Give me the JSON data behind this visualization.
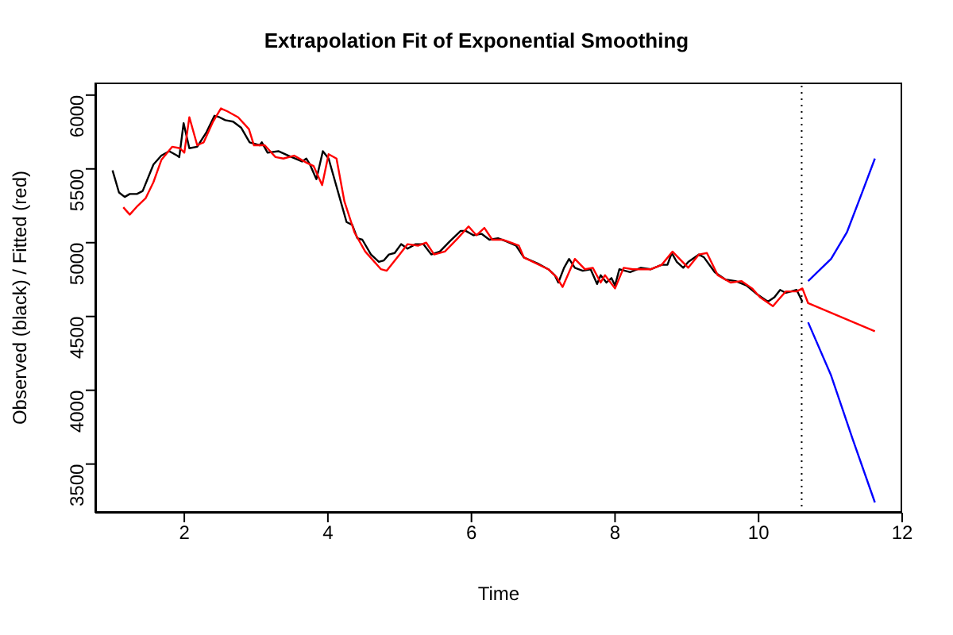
{
  "chart_data": {
    "type": "line",
    "title": "Extrapolation Fit of Exponential Smoothing",
    "xlabel": "Time",
    "ylabel": "Observed (black) / Fitted (red)",
    "xlim": [
      0.76,
      12.0
    ],
    "ylim": [
      3170,
      6085
    ],
    "xticks": [
      2,
      4,
      6,
      8,
      10,
      12
    ],
    "yticks": [
      3500,
      4000,
      4500,
      5000,
      5500,
      6000
    ],
    "marker": "none",
    "line_style": "solid",
    "series": [
      {
        "color": "#000000",
        "x": [
          1.0,
          1.09,
          1.17,
          1.24,
          1.34,
          1.42,
          1.57,
          1.68,
          1.79,
          1.9,
          1.93,
          1.99,
          2.07,
          2.18,
          2.31,
          2.42,
          2.49,
          2.57,
          2.68,
          2.79,
          2.91,
          3.05,
          3.08,
          3.16,
          3.31,
          3.45,
          3.64,
          3.7,
          3.75,
          3.84,
          3.93,
          4.01,
          4.26,
          4.34,
          4.41,
          4.48,
          4.6,
          4.71,
          4.78,
          4.85,
          4.93,
          5.02,
          5.11,
          5.22,
          5.33,
          5.44,
          5.56,
          5.7,
          5.85,
          5.92,
          6.03,
          6.14,
          6.25,
          6.37,
          6.48,
          6.62,
          6.73,
          6.92,
          7.07,
          7.16,
          7.21,
          7.29,
          7.36,
          7.44,
          7.55,
          7.66,
          7.75,
          7.8,
          7.88,
          7.95,
          8.0,
          8.06,
          8.21,
          8.36,
          8.5,
          8.65,
          8.73,
          8.79,
          8.86,
          8.95,
          9.02,
          9.17,
          9.24,
          9.39,
          9.54,
          9.68,
          9.83,
          9.98,
          10.13,
          10.22,
          10.3,
          10.38,
          10.53,
          10.61
        ],
        "values": [
          5490,
          5340,
          5310,
          5330,
          5330,
          5350,
          5530,
          5590,
          5620,
          5590,
          5580,
          5810,
          5640,
          5650,
          5750,
          5860,
          5850,
          5830,
          5820,
          5780,
          5680,
          5660,
          5680,
          5610,
          5620,
          5590,
          5550,
          5570,
          5530,
          5430,
          5620,
          5570,
          5140,
          5120,
          5030,
          5020,
          4920,
          4870,
          4880,
          4920,
          4930,
          4990,
          4960,
          4990,
          4990,
          4920,
          4940,
          5010,
          5080,
          5080,
          5050,
          5060,
          5020,
          5030,
          5010,
          4980,
          4900,
          4860,
          4820,
          4780,
          4730,
          4830,
          4890,
          4830,
          4810,
          4820,
          4720,
          4780,
          4730,
          4760,
          4710,
          4820,
          4800,
          4830,
          4820,
          4850,
          4850,
          4930,
          4870,
          4830,
          4870,
          4920,
          4900,
          4800,
          4750,
          4740,
          4710,
          4650,
          4600,
          4630,
          4680,
          4660,
          4680,
          4600
        ]
      },
      {
        "color": "#ff0000",
        "x": [
          1.15,
          1.24,
          1.35,
          1.46,
          1.57,
          1.68,
          1.83,
          1.94,
          2.0,
          2.07,
          2.18,
          2.27,
          2.4,
          2.51,
          2.6,
          2.75,
          2.9,
          2.97,
          3.12,
          3.27,
          3.38,
          3.53,
          3.71,
          3.8,
          3.92,
          4.01,
          4.12,
          4.23,
          4.37,
          4.52,
          4.74,
          4.82,
          5.0,
          5.11,
          5.26,
          5.37,
          5.48,
          5.63,
          5.81,
          5.96,
          6.07,
          6.18,
          6.29,
          6.44,
          6.55,
          6.66,
          6.73,
          7.07,
          7.18,
          7.27,
          7.44,
          7.58,
          7.69,
          7.8,
          7.86,
          8.0,
          8.12,
          8.25,
          8.36,
          8.5,
          8.65,
          8.8,
          8.88,
          9.02,
          9.17,
          9.28,
          9.43,
          9.61,
          9.76,
          9.91,
          10.02,
          10.2,
          10.27,
          10.38,
          10.53,
          10.61,
          10.69,
          11.62
        ],
        "values": [
          5240,
          5190,
          5250,
          5300,
          5410,
          5560,
          5650,
          5640,
          5610,
          5850,
          5660,
          5680,
          5820,
          5910,
          5890,
          5850,
          5770,
          5660,
          5660,
          5580,
          5570,
          5590,
          5540,
          5520,
          5390,
          5600,
          5570,
          5280,
          5070,
          4940,
          4820,
          4810,
          4920,
          4990,
          4980,
          5000,
          4920,
          4940,
          5030,
          5110,
          5050,
          5100,
          5020,
          5020,
          5000,
          4980,
          4900,
          4820,
          4770,
          4700,
          4890,
          4820,
          4830,
          4730,
          4780,
          4690,
          4830,
          4820,
          4820,
          4820,
          4850,
          4940,
          4900,
          4830,
          4920,
          4930,
          4780,
          4730,
          4740,
          4690,
          4630,
          4570,
          4610,
          4670,
          4670,
          4690,
          4590,
          4400
        ]
      },
      {
        "color": "#0000ff",
        "x": [
          10.69,
          11.01,
          11.23,
          11.45,
          11.62
        ],
        "values": [
          4740,
          4890,
          5070,
          5350,
          5570
        ]
      },
      {
        "color": "#0000ff",
        "x": [
          10.69,
          11.01,
          11.31,
          11.62
        ],
        "values": [
          4460,
          4100,
          3670,
          3240
        ]
      }
    ],
    "ref_lines": [
      {
        "axis": "x",
        "value": 10.6,
        "color": "#000000",
        "line_style": "dotted"
      }
    ]
  }
}
